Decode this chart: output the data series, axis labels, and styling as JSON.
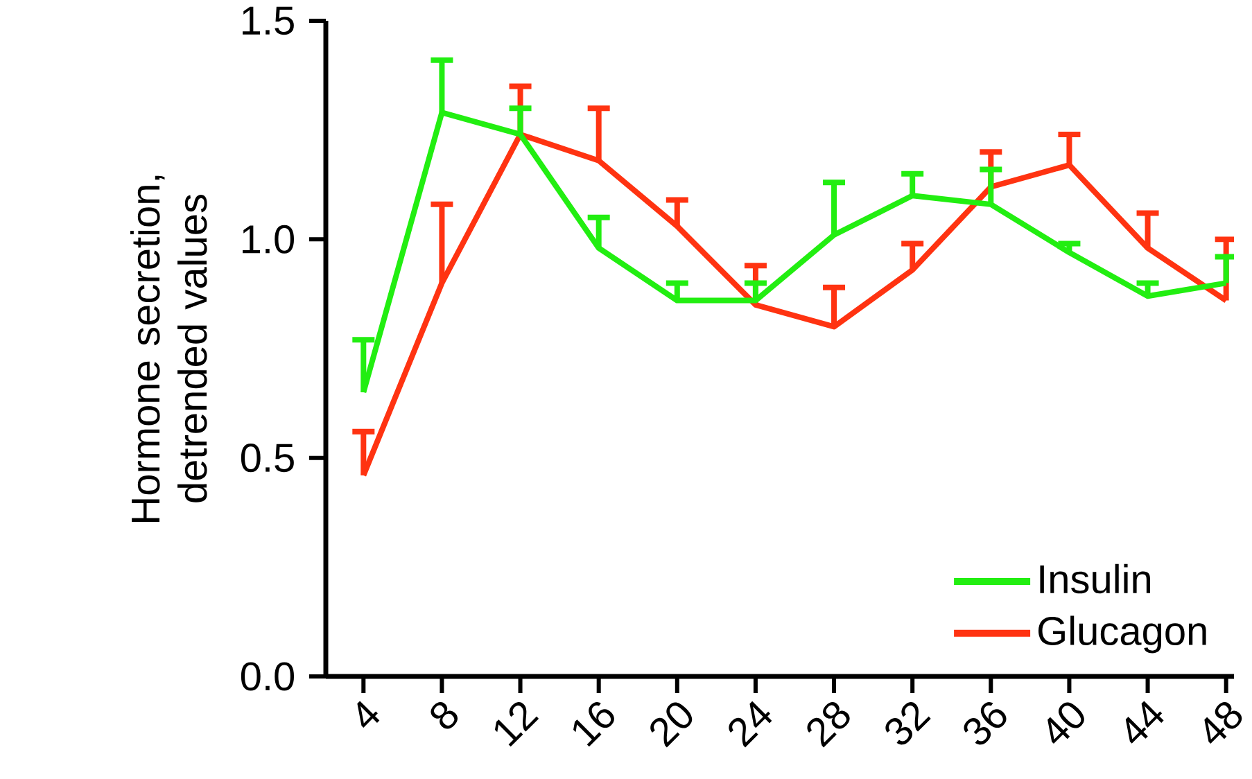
{
  "chart_data": {
    "type": "line",
    "ylabel": "Hormone secretion, detrended values",
    "categories": [
      "4",
      "8",
      "12",
      "16",
      "20",
      "24",
      "28",
      "32",
      "36",
      "40",
      "44",
      "48"
    ],
    "series": [
      {
        "name": "Insulin",
        "color": "#22ee11",
        "values": [
          0.65,
          1.29,
          1.24,
          0.98,
          0.86,
          0.86,
          1.01,
          1.1,
          1.08,
          0.97,
          0.87,
          0.9
        ],
        "errors": [
          [
            0.65,
            0.77
          ],
          [
            1.29,
            1.41
          ],
          [
            1.24,
            1.3
          ],
          [
            0.98,
            1.05
          ],
          [
            0.86,
            0.9
          ],
          [
            0.86,
            0.9
          ],
          [
            1.01,
            1.13
          ],
          [
            1.1,
            1.15
          ],
          [
            1.08,
            1.16
          ],
          [
            0.97,
            0.99
          ],
          [
            0.87,
            0.9
          ],
          [
            0.9,
            0.96
          ]
        ]
      },
      {
        "name": "Glucagon",
        "color": "#ff3311",
        "values": [
          0.46,
          0.9,
          1.24,
          1.18,
          1.03,
          0.85,
          0.8,
          0.93,
          1.12,
          1.17,
          0.98,
          0.86
        ],
        "errors": [
          [
            0.46,
            0.56
          ],
          [
            0.9,
            1.08
          ],
          [
            1.24,
            1.35
          ],
          [
            1.18,
            1.3
          ],
          [
            1.03,
            1.09
          ],
          [
            0.85,
            0.94
          ],
          [
            0.8,
            0.89
          ],
          [
            0.93,
            0.99
          ],
          [
            1.12,
            1.2
          ],
          [
            1.17,
            1.24
          ],
          [
            0.98,
            1.06
          ],
          [
            0.86,
            1.0
          ]
        ]
      }
    ],
    "ylim": [
      0,
      1.5
    ],
    "yticks": [
      {
        "value": 0,
        "label": "0.0"
      },
      {
        "value": 0.5,
        "label": "0.5"
      },
      {
        "value": 1.0,
        "label": "1.0"
      },
      {
        "value": 1.5,
        "label": "1.5"
      }
    ],
    "grid": false,
    "legend": "bottom right",
    "marker": "none",
    "line_style": "solid"
  }
}
